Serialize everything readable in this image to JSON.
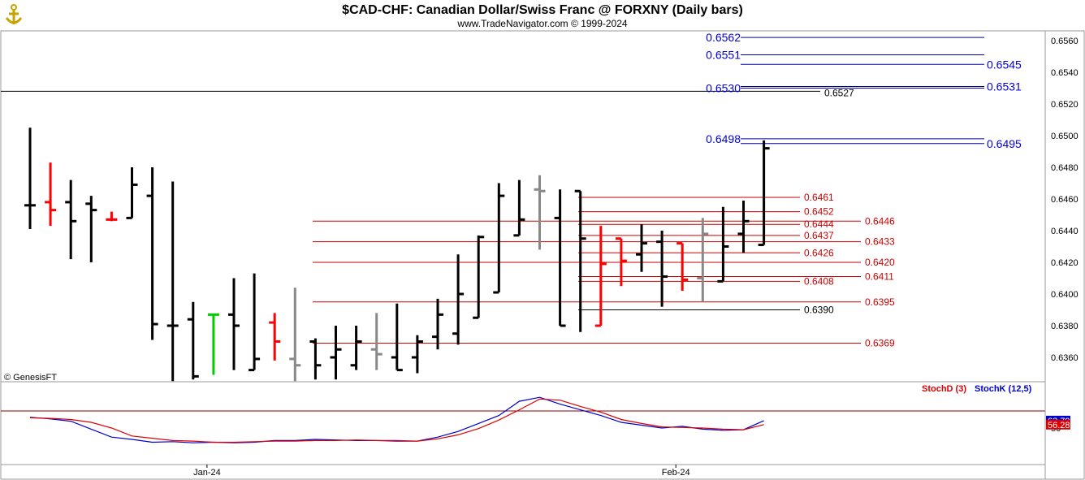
{
  "header": {
    "title": "$CAD-CHF:  Canadian Dollar/Swiss Franc @ FORXNY  (Daily bars)",
    "subtitle": "www.TradeNavigator.com © 1999-2024",
    "logo_icon": "anchor-logo-icon"
  },
  "watermark": "© GenesisFT",
  "chart_data": [
    {
      "type": "ohlc",
      "name": "price",
      "ylim": [
        0.6345,
        0.657
      ],
      "y_ticks": [
        "0.6560",
        "0.6540",
        "0.6520",
        "0.6500",
        "0.6480",
        "0.6460",
        "0.6440",
        "0.6420",
        "0.6400",
        "0.6380",
        "0.6360"
      ],
      "x_labels": [
        "Jan-24",
        "Feb-24"
      ],
      "last_price": "0.6492",
      "bar_colors": {
        "black": "#000000",
        "red": "#ff0000",
        "green": "#00cc00",
        "gray": "#888888"
      },
      "bars": [
        {
          "o": 0.6456,
          "h": 0.6505,
          "l": 0.6441,
          "c": 0.6456,
          "color": "black"
        },
        {
          "o": 0.6458,
          "h": 0.6483,
          "l": 0.6443,
          "c": 0.6453,
          "color": "red"
        },
        {
          "o": 0.6458,
          "h": 0.6472,
          "l": 0.6422,
          "c": 0.6446,
          "color": "black"
        },
        {
          "o": 0.6457,
          "h": 0.6462,
          "l": 0.642,
          "c": 0.6453,
          "color": "black"
        },
        {
          "o": 0.6447,
          "h": 0.6452,
          "l": 0.6446,
          "c": 0.6447,
          "color": "red"
        },
        {
          "o": 0.6448,
          "h": 0.648,
          "l": 0.6448,
          "c": 0.6469,
          "color": "black"
        },
        {
          "o": 0.6462,
          "h": 0.648,
          "l": 0.6371,
          "c": 0.6381,
          "color": "black"
        },
        {
          "o": 0.638,
          "h": 0.6471,
          "l": 0.6345,
          "c": 0.638,
          "color": "black"
        },
        {
          "o": 0.6384,
          "h": 0.6395,
          "l": 0.6346,
          "c": 0.6348,
          "color": "black"
        },
        {
          "o": 0.6387,
          "h": 0.6387,
          "l": 0.6349,
          "c": 0.6387,
          "color": "green"
        },
        {
          "o": 0.6387,
          "h": 0.641,
          "l": 0.6352,
          "c": 0.638,
          "color": "black"
        },
        {
          "o": 0.6352,
          "h": 0.6413,
          "l": 0.6352,
          "c": 0.6359,
          "color": "black"
        },
        {
          "o": 0.6382,
          "h": 0.6388,
          "l": 0.6358,
          "c": 0.637,
          "color": "red"
        },
        {
          "o": 0.6359,
          "h": 0.6404,
          "l": 0.6345,
          "c": 0.6355,
          "color": "gray"
        },
        {
          "o": 0.637,
          "h": 0.6372,
          "l": 0.6346,
          "c": 0.6355,
          "color": "black"
        },
        {
          "o": 0.636,
          "h": 0.638,
          "l": 0.6346,
          "c": 0.6365,
          "color": "black"
        },
        {
          "o": 0.6355,
          "h": 0.638,
          "l": 0.6352,
          "c": 0.637,
          "color": "black"
        },
        {
          "o": 0.6365,
          "h": 0.6388,
          "l": 0.6352,
          "c": 0.6362,
          "color": "gray"
        },
        {
          "o": 0.636,
          "h": 0.6394,
          "l": 0.6352,
          "c": 0.6352,
          "color": "black"
        },
        {
          "o": 0.636,
          "h": 0.6374,
          "l": 0.635,
          "c": 0.637,
          "color": "black"
        },
        {
          "o": 0.6373,
          "h": 0.6397,
          "l": 0.6365,
          "c": 0.6387,
          "color": "black"
        },
        {
          "o": 0.6375,
          "h": 0.6425,
          "l": 0.6368,
          "c": 0.64,
          "color": "black"
        },
        {
          "o": 0.6385,
          "h": 0.6437,
          "l": 0.6385,
          "c": 0.6436,
          "color": "black"
        },
        {
          "o": 0.6401,
          "h": 0.647,
          "l": 0.6401,
          "c": 0.6462,
          "color": "black"
        },
        {
          "o": 0.6437,
          "h": 0.6472,
          "l": 0.6437,
          "c": 0.6447,
          "color": "black"
        },
        {
          "o": 0.6466,
          "h": 0.6475,
          "l": 0.6428,
          "c": 0.6465,
          "color": "gray"
        },
        {
          "o": 0.6448,
          "h": 0.6466,
          "l": 0.638,
          "c": 0.638,
          "color": "black"
        },
        {
          "o": 0.6465,
          "h": 0.6465,
          "l": 0.6376,
          "c": 0.6435,
          "color": "black"
        },
        {
          "o": 0.638,
          "h": 0.6443,
          "l": 0.638,
          "c": 0.6419,
          "color": "red"
        },
        {
          "o": 0.6435,
          "h": 0.6435,
          "l": 0.6405,
          "c": 0.6421,
          "color": "red"
        },
        {
          "o": 0.6425,
          "h": 0.6444,
          "l": 0.6414,
          "c": 0.6432,
          "color": "black"
        },
        {
          "o": 0.6433,
          "h": 0.644,
          "l": 0.6392,
          "c": 0.6411,
          "color": "black"
        },
        {
          "o": 0.6432,
          "h": 0.6432,
          "l": 0.6402,
          "c": 0.6409,
          "color": "red"
        },
        {
          "o": 0.641,
          "h": 0.6448,
          "l": 0.6395,
          "c": 0.6438,
          "color": "gray"
        },
        {
          "o": 0.6408,
          "h": 0.6455,
          "l": 0.6408,
          "c": 0.643,
          "color": "black"
        },
        {
          "o": 0.6438,
          "h": 0.6459,
          "l": 0.6426,
          "c": 0.6446,
          "color": "black"
        },
        {
          "o": 0.6431,
          "h": 0.6497,
          "l": 0.6431,
          "c": 0.6492,
          "color": "black"
        }
      ],
      "levels_blue": [
        {
          "value": 0.6562,
          "label": "0.6562",
          "side": "left"
        },
        {
          "value": 0.6551,
          "label": "0.6551",
          "side": "left"
        },
        {
          "value": 0.6545,
          "label": "0.6545",
          "side": "right"
        },
        {
          "value": 0.653,
          "label": "0.6530",
          "side": "left"
        },
        {
          "value": 0.6531,
          "label": "0.6531",
          "side": "right"
        },
        {
          "value": 0.6498,
          "label": "0.6498",
          "side": "left"
        },
        {
          "value": 0.6495,
          "label": "0.6495",
          "side": "right"
        }
      ],
      "level_black_long": {
        "value": 0.6528
      },
      "level_black_label": {
        "value": 0.6527,
        "label": "0.6527"
      },
      "levels_red_right": [
        {
          "value": 0.6461,
          "label": "0.6461"
        },
        {
          "value": 0.6452,
          "label": "0.6452"
        },
        {
          "value": 0.6444,
          "label": "0.6444"
        },
        {
          "value": 0.6437,
          "label": "0.6437"
        },
        {
          "value": 0.6426,
          "label": "0.6426"
        },
        {
          "value": 0.6408,
          "label": "0.6408"
        }
      ],
      "levels_red_long": [
        {
          "value": 0.6446,
          "label": "0.6446"
        },
        {
          "value": 0.6433,
          "label": "0.6433"
        },
        {
          "value": 0.642,
          "label": "0.6420"
        },
        {
          "value": 0.6411,
          "label": "0.6411"
        },
        {
          "value": 0.6395,
          "label": "0.6395"
        },
        {
          "value": 0.6369,
          "label": "0.6369"
        }
      ],
      "level_black_low": {
        "value": 0.639,
        "label": "0.6390"
      }
    },
    {
      "type": "line",
      "name": "stochastic",
      "ylim": [
        0,
        100
      ],
      "y_ticks": [
        "50"
      ],
      "legend": [
        {
          "label": "StochD (3)",
          "color": "#dd0000"
        },
        {
          "label": "StochK (12,5)",
          "color": "#0000cc"
        }
      ],
      "reference_line": 80,
      "series": [
        {
          "name": "StochK (12,5)",
          "color": "#0000cc",
          "last_label": "63.79",
          "values": [
            69,
            66,
            62,
            48,
            34,
            30,
            25,
            26,
            24,
            25,
            24,
            25,
            28,
            28,
            30,
            29,
            28,
            28,
            27,
            27,
            34,
            44,
            58,
            72,
            97,
            104,
            92,
            82,
            72,
            60,
            55,
            50,
            53,
            48,
            46,
            47,
            63
          ]
        },
        {
          "name": "StochD (3)",
          "color": "#dd0000",
          "last_label": "56.28",
          "values": [
            68,
            67,
            65,
            60,
            50,
            36,
            32,
            28,
            27,
            25,
            25,
            26,
            27,
            27,
            28,
            28,
            29,
            28,
            28,
            27,
            31,
            38,
            49,
            64,
            82,
            101,
            99,
            88,
            78,
            65,
            58,
            52,
            51,
            50,
            48,
            47,
            56
          ]
        }
      ]
    }
  ]
}
